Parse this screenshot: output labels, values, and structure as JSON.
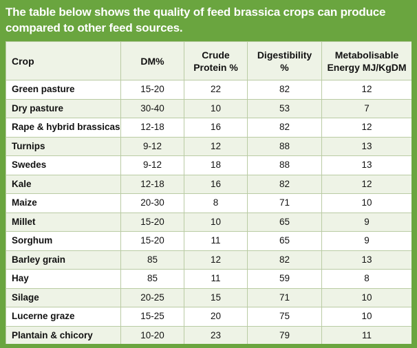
{
  "heading": "The table below shows the quality of feed brassica crops can produce compared to other feed sources.",
  "table": {
    "headers": {
      "crop": "Crop",
      "dm": "DM%",
      "protein_1": "Crude",
      "protein_2": "Protein %",
      "digest_1": "Digestibility",
      "digest_2": "%",
      "energy_1": "Metabolisable",
      "energy_2": "Energy MJ/KgDM"
    },
    "rows": [
      {
        "crop": "Green pasture",
        "dm": "15-20",
        "protein": "22",
        "digestibility": "82",
        "energy": "12"
      },
      {
        "crop": "Dry pasture",
        "dm": "30-40",
        "protein": "10",
        "digestibility": "53",
        "energy": "7"
      },
      {
        "crop": "Rape & hybrid brassicas",
        "dm": "12-18",
        "protein": "16",
        "digestibility": "82",
        "energy": "12"
      },
      {
        "crop": "Turnips",
        "dm": "9-12",
        "protein": "12",
        "digestibility": "88",
        "energy": "13"
      },
      {
        "crop": "Swedes",
        "dm": "9-12",
        "protein": "18",
        "digestibility": "88",
        "energy": "13"
      },
      {
        "crop": "Kale",
        "dm": "12-18",
        "protein": "16",
        "digestibility": "82",
        "energy": "12"
      },
      {
        "crop": "Maize",
        "dm": "20-30",
        "protein": "8",
        "digestibility": "71",
        "energy": "10"
      },
      {
        "crop": "Millet",
        "dm": "15-20",
        "protein": "10",
        "digestibility": "65",
        "energy": "9"
      },
      {
        "crop": "Sorghum",
        "dm": "15-20",
        "protein": "11",
        "digestibility": "65",
        "energy": "9"
      },
      {
        "crop": "Barley grain",
        "dm": "85",
        "protein": "12",
        "digestibility": "82",
        "energy": "13"
      },
      {
        "crop": "Hay",
        "dm": "85",
        "protein": "11",
        "digestibility": "59",
        "energy": "8"
      },
      {
        "crop": "Silage",
        "dm": "20-25",
        "protein": "15",
        "digestibility": "71",
        "energy": "10"
      },
      {
        "crop": "Lucerne graze",
        "dm": "15-25",
        "protein": "20",
        "digestibility": "75",
        "energy": "10"
      },
      {
        "crop": "Plantain & chicory",
        "dm": "10-20",
        "protein": "23",
        "digestibility": "79",
        "energy": "11"
      }
    ]
  },
  "colors": {
    "background": "#6aa53f",
    "row_alt": "#eef3e6",
    "border": "#b9cba3"
  }
}
